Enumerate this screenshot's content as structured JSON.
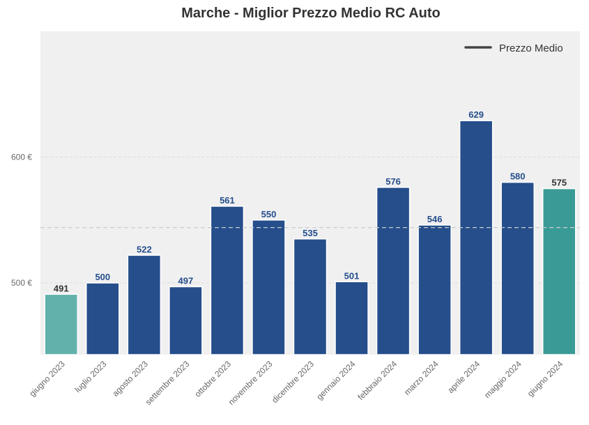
{
  "chart_data": {
    "type": "bar",
    "title": "Marche - Miglior Prezzo Medio RC Auto",
    "xlabel": "",
    "ylabel": "",
    "categories": [
      "giugno 2023",
      "luglio 2023",
      "agosto 2023",
      "settembre 2023",
      "ottobre 2023",
      "novembre 2023",
      "dicembre 2023",
      "gennaio 2024",
      "febbraio 2024",
      "marzo 2024",
      "aprile 2024",
      "maggio 2024",
      "giugno 2024"
    ],
    "values": [
      491,
      500,
      522,
      497,
      561,
      550,
      535,
      501,
      576,
      546,
      629,
      580,
      575
    ],
    "value_labels": [
      "491",
      "500",
      "522",
      "497",
      "561",
      "550",
      "535",
      "501",
      "576",
      "546",
      "629",
      "580",
      "575"
    ],
    "ylim": [
      443,
      700
    ],
    "yticks": [
      500,
      600
    ],
    "ytick_labels": [
      "500 €",
      "600 €"
    ],
    "average_line": {
      "name": "Prezzo Medio",
      "value": 544
    },
    "legend": {
      "position": "top-right",
      "entries": [
        "Prezzo Medio"
      ]
    },
    "grid": true,
    "colors": {
      "default_bar": "#254e8b",
      "first_bar": "#62b2ab",
      "last_bar": "#3a9b96",
      "default_label": "#254e8b",
      "endpoint_label": "#333333",
      "plot_bg": "#f0f0f1",
      "average_line": "#cccccc",
      "legend_line": "#444444"
    }
  }
}
